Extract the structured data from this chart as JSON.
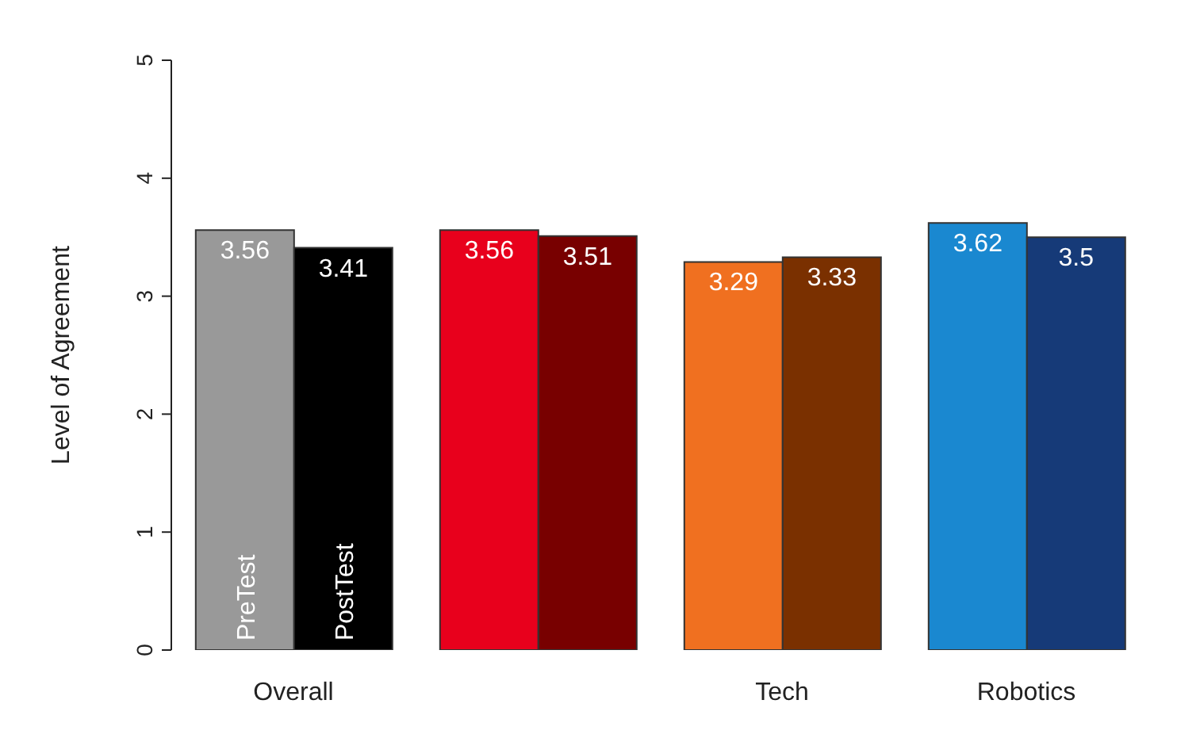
{
  "chart_data": {
    "type": "bar",
    "ylabel": "Level of Agreement",
    "categories": [
      "Overall",
      null,
      "Tech",
      "Robotics"
    ],
    "series": [
      {
        "name": "PreTest",
        "colors": [
          "#999999",
          "#e8001c",
          "#f07020",
          "#1a88d0"
        ],
        "values": [
          3.56,
          3.56,
          3.29,
          3.62
        ]
      },
      {
        "name": "PostTest",
        "colors": [
          "#000000",
          "#780000",
          "#7a3000",
          "#163a78"
        ],
        "values": [
          3.41,
          3.51,
          3.33,
          3.5
        ]
      }
    ],
    "ylim": [
      0,
      5
    ],
    "yticks": [
      0,
      1,
      2,
      3,
      4,
      5
    ],
    "data_labels": true,
    "grid": false,
    "legend": false
  }
}
